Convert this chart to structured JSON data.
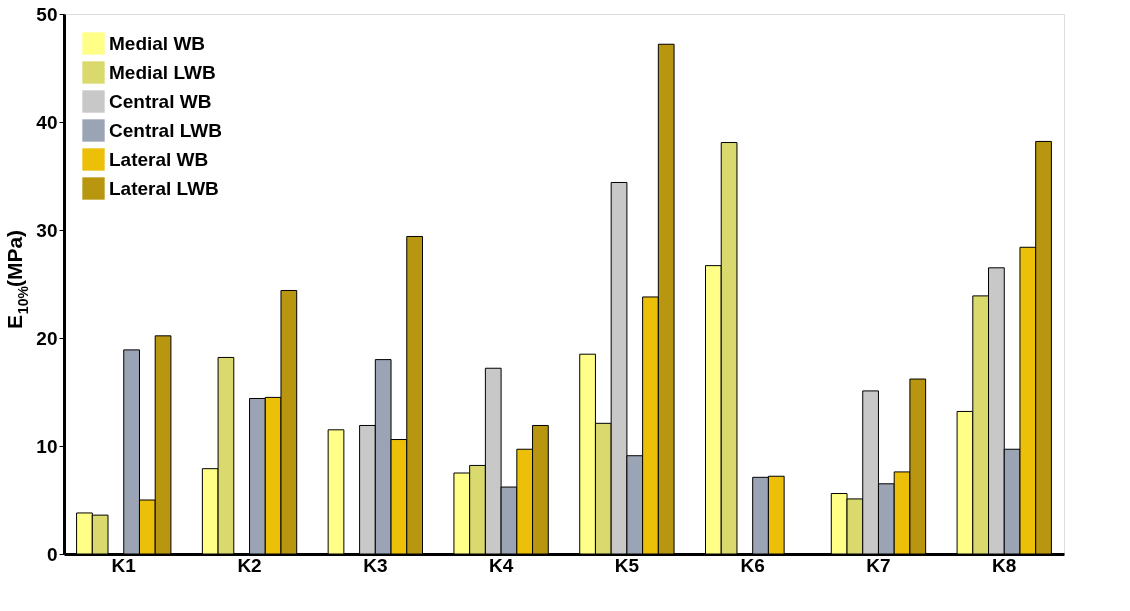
{
  "chart_data": {
    "type": "bar",
    "ylabel": "E$_{10%}$(MPa)",
    "categories": [
      "K1",
      "K2",
      "K3",
      "K4",
      "K5",
      "K6",
      "K7",
      "K8"
    ],
    "series": [
      {
        "name": "Medial WB",
        "color": "#ffff88",
        "values": [
          3.8,
          7.9,
          11.5,
          7.5,
          18.5,
          26.7,
          5.6,
          13.2
        ]
      },
      {
        "name": "Medial LWB",
        "color": "#d9d96e",
        "values": [
          3.6,
          18.2,
          null,
          8.2,
          12.1,
          38.1,
          5.1,
          23.9
        ]
      },
      {
        "name": "Central WB",
        "color": "#c8c8c8",
        "values": [
          null,
          null,
          11.9,
          17.2,
          34.4,
          null,
          15.1,
          26.5
        ]
      },
      {
        "name": "Central LWB",
        "color": "#9aa4b4",
        "values": [
          18.9,
          14.4,
          18.0,
          6.2,
          9.1,
          7.1,
          6.5,
          9.7
        ]
      },
      {
        "name": "Lateral WB",
        "color": "#ecbf08",
        "values": [
          5.0,
          14.5,
          10.6,
          9.7,
          23.8,
          7.2,
          7.6,
          28.4
        ]
      },
      {
        "name": "Lateral LWB",
        "color": "#b8960f",
        "values": [
          20.2,
          24.4,
          29.4,
          11.9,
          47.2,
          null,
          16.2,
          38.2
        ]
      }
    ],
    "ylim": [
      0,
      50
    ],
    "yticks": [
      0,
      10,
      20,
      30,
      40,
      50
    ],
    "grid": false,
    "legend": "top left"
  }
}
